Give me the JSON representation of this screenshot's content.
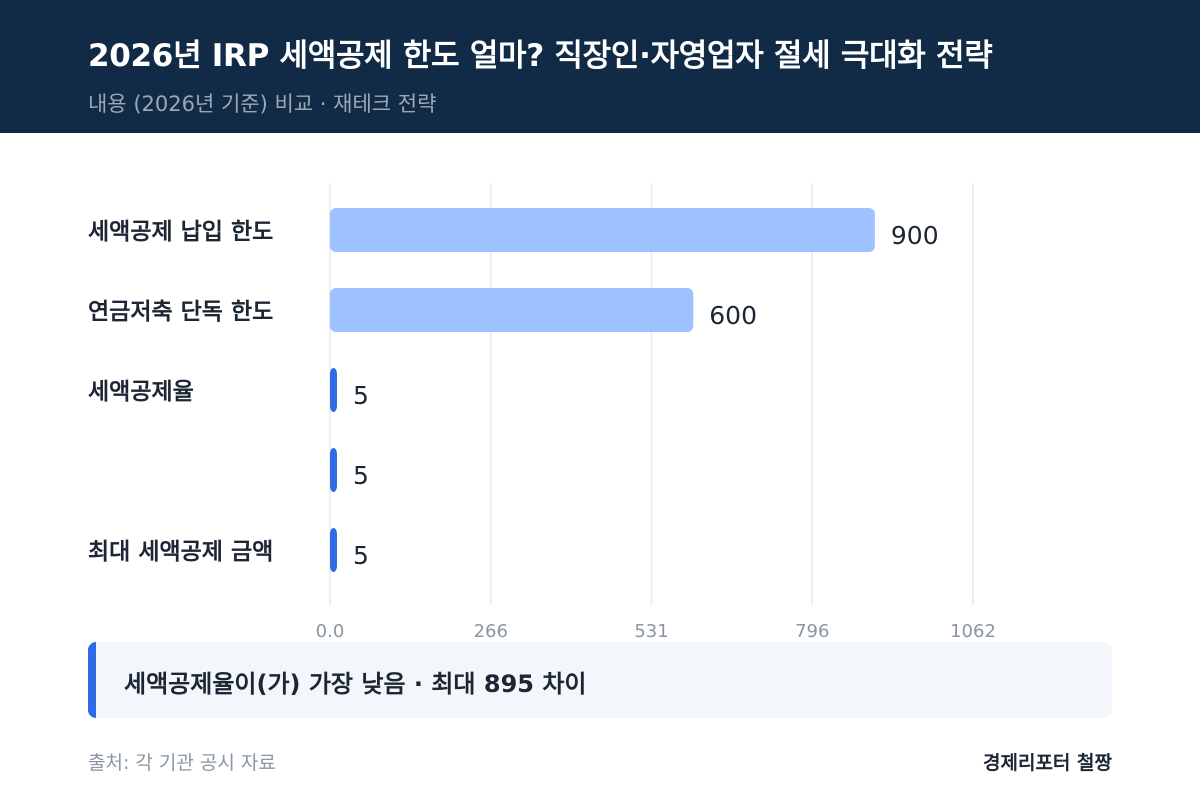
{
  "header": {
    "title": "2026년 IRP 세액공제 한도 얼마? 직장인·자영업자 절세 극대화 전략",
    "subtitle": "내용 (2026년 기준) 비교 · 재테크 전략"
  },
  "chart_data": {
    "type": "bar",
    "orientation": "horizontal",
    "categories": [
      "세액공제 납입 한도",
      "연금저축 단독 한도",
      "세액공제율",
      "",
      "최대 세액공제 금액"
    ],
    "values": [
      900,
      600,
      5,
      5,
      5
    ],
    "value_labels": [
      "900",
      "600",
      "5",
      "5",
      "5"
    ],
    "xticks": [
      "0.0",
      "266",
      "531",
      "796",
      "1062"
    ],
    "xlim": [
      0,
      1062
    ],
    "grid": true,
    "colors": {
      "highlight": "#9ec1ff",
      "default": "#2f6be3"
    },
    "highlight": [
      true,
      true,
      false,
      false,
      false
    ]
  },
  "insight": {
    "text": "세액공제율이(가) 가장 낮음 · 최대 895 차이",
    "accent": "#2f6be3"
  },
  "footer": {
    "source": "출처: 각 기관 공시 자료",
    "brand": "경제리포터 철짱"
  }
}
